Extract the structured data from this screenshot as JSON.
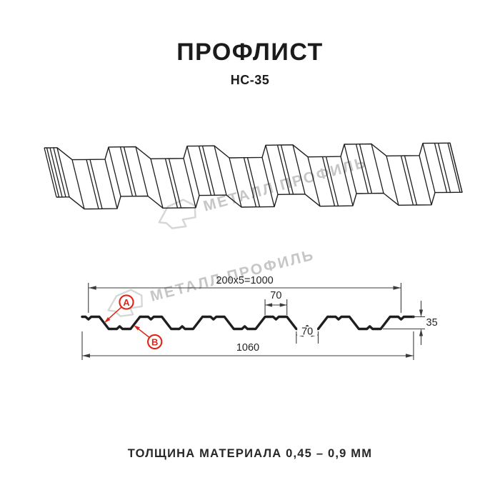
{
  "header": {
    "title": "ПРОФЛИСТ",
    "subtitle": "НС-35"
  },
  "watermark": {
    "brand": "МЕТАЛЛ ПРОФИЛЬ"
  },
  "cross_section": {
    "dims": {
      "pitch": "200x5=1000",
      "rib_top_width": "70",
      "rib_bottom_width": "70",
      "overall_width": "1060",
      "height": "35"
    },
    "point_labels": {
      "a": "А",
      "b": "В"
    }
  },
  "footer": {
    "text": "ТОЛЩИНА МАТЕРИАЛА 0,45 – 0,9 ММ"
  },
  "colors": {
    "accent_red": "#e02419",
    "line": "#1e1e1e",
    "dim_line": "#3c3c3c",
    "dim_text": "#242424",
    "watermark_text": "#c6c6c6",
    "watermark_logo": "#d6d6d6"
  }
}
